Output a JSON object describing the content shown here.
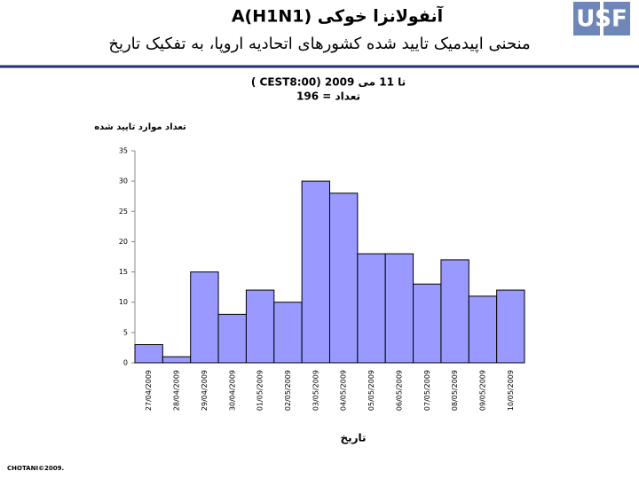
{
  "header": {
    "title": "آنفولانزا خوکی A(H1N1)",
    "subtitle": "منحنی اپیدمیک تایید شده کشورهای اتحادیه اروپا، به تفکیک تاریخ",
    "logo": "USF"
  },
  "chart_data": {
    "type": "bar",
    "title": "تا 11 می 2009 (CEST8:00 )",
    "subtitle": "تعداد = 196",
    "y_label": "تعداد موارد تایید شده",
    "x_label": "تاریخ",
    "categories": [
      "27/04/2009",
      "28/04/2009",
      "29/04/2009",
      "30/04/2009",
      "01/05/2009",
      "02/05/2009",
      "03/05/2009",
      "04/05/2009",
      "05/05/2009",
      "06/05/2009",
      "07/05/2009",
      "08/05/2009",
      "09/05/2009",
      "10/05/2009"
    ],
    "values": [
      3,
      1,
      15,
      8,
      12,
      10,
      30,
      28,
      18,
      18,
      13,
      17,
      11,
      12
    ],
    "color": "#9999ff",
    "ylim": [
      0,
      35
    ],
    "yticks": [
      0,
      5,
      10,
      15,
      20,
      25,
      30,
      35
    ],
    "grid": false
  },
  "footer": "CHOTANI©2009."
}
